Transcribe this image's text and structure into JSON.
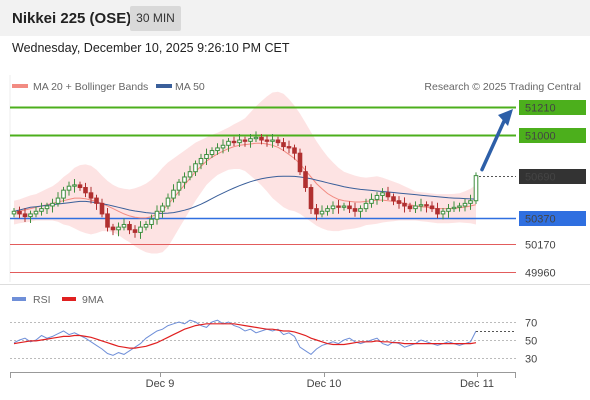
{
  "header": {
    "instrument": "Nikkei 225 (OSE)",
    "timeframe": "30 MIN",
    "datetime": "Wednesday, December 10, 2025 9:26:10 PM CET"
  },
  "colors": {
    "green": "#4caf1c",
    "blue": "#2f6fe0",
    "red": "#e25c5c",
    "ma20": "#f28b82",
    "ma50": "#3a5f9a",
    "band": "#fde0e0",
    "bull": "#3f8f3f",
    "bear": "#b03030",
    "rsi": "#6f8fd8",
    "rsi_ma": "#e02020",
    "arrow": "#2d5fa8"
  },
  "chart_data": [
    {
      "type": "candlestick",
      "title": "Nikkei 225 (OSE)",
      "legend": [
        {
          "name": "MA 20 + Bollinger Bands",
          "color": "#f28b82"
        },
        {
          "name": "MA 50",
          "color": "#3a5f9a"
        }
      ],
      "watermark": "Research © 2025 Trading Central",
      "x_ticks": [
        "Dec 9",
        "Dec 10",
        "Dec 11"
      ],
      "levels": [
        {
          "value": "51210",
          "style": "resistance",
          "color": "#4caf1c"
        },
        {
          "value": "51000",
          "style": "resistance",
          "color": "#4caf1c"
        },
        {
          "value": "50690",
          "style": "last",
          "color": "#333333"
        },
        {
          "value": "50370",
          "style": "pivot",
          "color": "#2f6fe0"
        },
        {
          "value": "50170",
          "style": "support",
          "color": "#e25c5c"
        },
        {
          "value": "49960",
          "style": "support",
          "color": "#e25c5c"
        }
      ],
      "ylim": [
        49960,
        51210
      ],
      "close": [
        50420,
        50400,
        50380,
        50400,
        50420,
        50440,
        50460,
        50480,
        50520,
        50580,
        50610,
        50620,
        50600,
        50560,
        50520,
        50480,
        50400,
        50300,
        50280,
        50300,
        50320,
        50280,
        50260,
        50300,
        50320,
        50360,
        50420,
        50460,
        50520,
        50580,
        50640,
        50680,
        50720,
        50780,
        50820,
        50850,
        50880,
        50900,
        50920,
        50950,
        50940,
        50960,
        50950,
        50970,
        50980,
        50960,
        50950,
        50960,
        50940,
        50910,
        50900,
        50860,
        50720,
        50600,
        50440,
        50400,
        50420,
        50440,
        50460,
        50450,
        50460,
        50440,
        50420,
        50440,
        50480,
        50510,
        50540,
        50560,
        50530,
        50500,
        50480,
        50460,
        50440,
        50460,
        50470,
        50460,
        50440,
        50400,
        50420,
        50440,
        50450,
        50460,
        50480,
        50500,
        50690
      ],
      "ma20": [
        50410,
        50420,
        50430,
        50440,
        50450,
        50460,
        50470,
        50480,
        50490,
        50500,
        50510,
        50520,
        50520,
        50515,
        50505,
        50495,
        50480,
        50460,
        50440,
        50420,
        50400,
        50385,
        50375,
        50370,
        50370,
        50380,
        50400,
        50430,
        50470,
        50520,
        50570,
        50620,
        50670,
        50720,
        50760,
        50800,
        50830,
        50855,
        50875,
        50895,
        50910,
        50920,
        50925,
        50930,
        50935,
        50935,
        50930,
        50920,
        50905,
        50880,
        50850,
        50820,
        50780,
        50730,
        50680,
        50630,
        50590,
        50555,
        50530,
        50510,
        50500,
        50495,
        50490,
        50490,
        50495,
        50500,
        50505,
        50505,
        50500,
        50495,
        50490,
        50480,
        50470,
        50460,
        50455,
        50450,
        50445,
        50440,
        50440,
        50440,
        50442,
        50446,
        50452,
        50460,
        50470
      ],
      "ma50": [
        50420,
        50430,
        50440,
        50450,
        50455,
        50460,
        50465,
        50470,
        50475,
        50480,
        50485,
        50490,
        50495,
        50495,
        50490,
        50485,
        50478,
        50470,
        50460,
        50450,
        50440,
        50430,
        50422,
        50416,
        50410,
        50406,
        50404,
        50404,
        50406,
        50410,
        50418,
        50428,
        50440,
        50456,
        50474,
        50494,
        50516,
        50538,
        50558,
        50578,
        50596,
        50614,
        50630,
        50644,
        50656,
        50666,
        50674,
        50680,
        50684,
        50686,
        50686,
        50684,
        50680,
        50674,
        50666,
        50656,
        50646,
        50636,
        50626,
        50616,
        50606,
        50598,
        50592,
        50586,
        50582,
        50578,
        50574,
        50570,
        50566,
        50562,
        50558,
        50554,
        50550,
        50546,
        50542,
        50538,
        50534,
        50530,
        50526,
        50522,
        50520,
        50518,
        50516,
        50514,
        50512
      ]
    },
    {
      "type": "line",
      "title": "RSI",
      "series": [
        {
          "name": "RSI",
          "color": "#6f8fd8"
        },
        {
          "name": "9MA",
          "color": "#e02020"
        }
      ],
      "y_ticks": [
        "70",
        "50",
        "30"
      ],
      "ylim": [
        20,
        80
      ],
      "rsi": [
        47,
        50,
        52,
        48,
        50,
        55,
        52,
        54,
        57,
        60,
        56,
        58,
        55,
        52,
        48,
        44,
        40,
        35,
        33,
        36,
        34,
        38,
        42,
        46,
        52,
        56,
        60,
        62,
        66,
        68,
        70,
        68,
        72,
        70,
        66,
        64,
        70,
        72,
        68,
        70,
        66,
        64,
        60,
        62,
        58,
        60,
        62,
        60,
        62,
        56,
        58,
        54,
        42,
        38,
        34,
        40,
        44,
        46,
        48,
        46,
        50,
        52,
        48,
        46,
        48,
        50,
        52,
        46,
        44,
        48,
        46,
        42,
        44,
        46,
        50,
        48,
        46,
        44,
        46,
        48,
        46,
        44,
        46,
        48,
        60
      ],
      "rsi_ma": [
        46,
        47,
        48,
        49,
        49,
        50,
        51,
        52,
        53,
        54,
        54,
        55,
        55,
        54,
        53,
        51,
        49,
        47,
        45,
        43,
        42,
        41,
        41,
        42,
        43,
        45,
        47,
        50,
        53,
        56,
        59,
        62,
        64,
        66,
        67,
        68,
        68,
        68,
        68,
        68,
        68,
        67,
        66,
        65,
        64,
        63,
        62,
        62,
        61,
        60,
        60,
        59,
        57,
        55,
        52,
        50,
        48,
        46,
        45,
        45,
        45,
        46,
        47,
        48,
        48,
        48,
        49,
        48,
        48,
        47,
        47,
        46,
        46,
        46,
        46,
        46,
        46,
        46,
        46,
        46,
        46,
        46,
        46,
        46,
        47
      ]
    }
  ]
}
